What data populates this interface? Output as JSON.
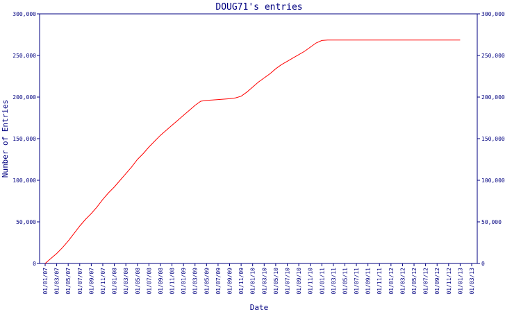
{
  "chart_data": {
    "type": "line",
    "title": "DOUG71's entries",
    "xlabel": "Date",
    "ylabel": "Number of Entries",
    "ylim": [
      0,
      300000
    ],
    "yticks": [
      0,
      50000,
      100000,
      150000,
      200000,
      250000,
      300000
    ],
    "ytick_labels": [
      "0",
      "50,000",
      "100,000",
      "150,000",
      "200,000",
      "250,000",
      "300,000"
    ],
    "xticks": [
      "01/01/07",
      "01/03/07",
      "01/05/07",
      "01/07/07",
      "01/09/07",
      "01/11/07",
      "01/01/08",
      "01/03/08",
      "01/05/08",
      "01/07/08",
      "01/09/08",
      "01/11/08",
      "01/01/09",
      "01/03/09",
      "01/05/09",
      "01/07/09",
      "01/09/09",
      "01/11/09",
      "01/01/10",
      "01/03/10",
      "01/05/10",
      "01/07/10",
      "01/09/10",
      "01/11/10",
      "01/01/11",
      "01/03/11",
      "01/05/11",
      "01/07/11",
      "01/09/11",
      "01/11/11",
      "01/01/12",
      "01/03/12",
      "01/05/12",
      "01/07/12",
      "01/09/12",
      "01/11/12",
      "01/01/13",
      "01/03/13"
    ],
    "grid": false,
    "series": [
      {
        "color": "#ff0000",
        "points": [
          [
            "2007-01-01",
            0
          ],
          [
            "2007-02-01",
            6000
          ],
          [
            "2007-03-01",
            12000
          ],
          [
            "2007-04-01",
            19000
          ],
          [
            "2007-05-01",
            27000
          ],
          [
            "2007-06-01",
            36000
          ],
          [
            "2007-07-01",
            45000
          ],
          [
            "2007-08-01",
            53000
          ],
          [
            "2007-09-01",
            60000
          ],
          [
            "2007-10-01",
            68000
          ],
          [
            "2007-11-01",
            77000
          ],
          [
            "2007-12-01",
            85000
          ],
          [
            "2008-01-01",
            92000
          ],
          [
            "2008-02-01",
            100000
          ],
          [
            "2008-03-01",
            108000
          ],
          [
            "2008-04-01",
            116000
          ],
          [
            "2008-05-01",
            125000
          ],
          [
            "2008-06-01",
            132000
          ],
          [
            "2008-07-01",
            140000
          ],
          [
            "2008-08-01",
            147000
          ],
          [
            "2008-09-01",
            154000
          ],
          [
            "2008-10-01",
            160000
          ],
          [
            "2008-11-01",
            166000
          ],
          [
            "2008-12-01",
            172000
          ],
          [
            "2009-01-01",
            178000
          ],
          [
            "2009-02-01",
            184000
          ],
          [
            "2009-03-01",
            190000
          ],
          [
            "2009-04-01",
            195000
          ],
          [
            "2009-05-01",
            196000
          ],
          [
            "2009-06-01",
            196500
          ],
          [
            "2009-07-01",
            197000
          ],
          [
            "2009-08-01",
            197500
          ],
          [
            "2009-09-01",
            198000
          ],
          [
            "2009-10-01",
            199000
          ],
          [
            "2009-11-01",
            201000
          ],
          [
            "2009-12-01",
            206000
          ],
          [
            "2010-01-01",
            212000
          ],
          [
            "2010-02-01",
            218000
          ],
          [
            "2010-03-01",
            223000
          ],
          [
            "2010-04-01",
            228000
          ],
          [
            "2010-05-01",
            234000
          ],
          [
            "2010-06-01",
            239000
          ],
          [
            "2010-07-01",
            243000
          ],
          [
            "2010-08-01",
            247000
          ],
          [
            "2010-09-01",
            251000
          ],
          [
            "2010-10-01",
            255000
          ],
          [
            "2010-11-01",
            260000
          ],
          [
            "2010-12-01",
            265000
          ],
          [
            "2011-01-01",
            268000
          ],
          [
            "2011-02-01",
            268500
          ],
          [
            "2013-01-01",
            268500
          ]
        ]
      }
    ]
  }
}
